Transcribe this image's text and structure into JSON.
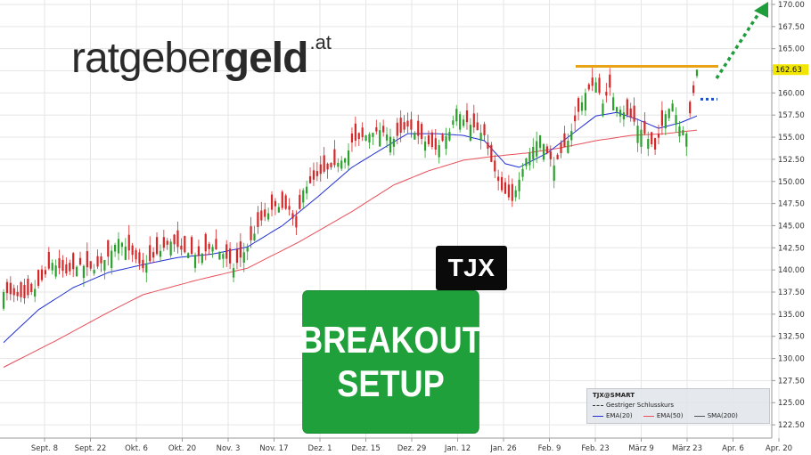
{
  "brand": {
    "name_light": "ratgeber",
    "name_bold": "geld",
    "tld": ".at"
  },
  "badge": {
    "ticker": "TJX"
  },
  "setup": {
    "line1": "BREAKOUT",
    "line2": "SETUP"
  },
  "legend": {
    "title": "TJX@SMART",
    "prev_close": "Gestriger Schlusskurs",
    "ema20": "EMA(20)",
    "ema50": "EMA(50)",
    "sma200": "SMA(200)"
  },
  "colors": {
    "up": "#2ca02c",
    "down": "#d62728",
    "ema20": "#1f2fd6",
    "ema50": "#e8505b",
    "resistance": "#e8a317",
    "target_arrow": "#1f9d3a",
    "prev_close": "#1f4fbf",
    "last_price_tag": "#f2e600",
    "grid": "#e6e6e6"
  },
  "chart_data": {
    "type": "candlestick",
    "ylim": [
      121,
      170.5
    ],
    "y_ticks": [
      "122.50",
      "125.00",
      "127.50",
      "130.00",
      "132.50",
      "135.00",
      "137.50",
      "140.00",
      "142.50",
      "145.00",
      "147.50",
      "150.00",
      "152.50",
      "155.00",
      "157.50",
      "160.00",
      "162.50",
      "165.00",
      "167.50",
      "170.00"
    ],
    "x_ticks": [
      "Sept. 8",
      "Sept. 22",
      "Okt. 6",
      "Okt. 20",
      "Nov. 3",
      "Nov. 17",
      "Dez. 1",
      "Dez. 15",
      "Dez. 29",
      "Jan. 12",
      "Jan. 26",
      "Feb. 9",
      "Feb. 23",
      "März 9",
      "März 23",
      "Apr. 6",
      "Apr. 20"
    ],
    "last_price": "162.63",
    "resistance": 163.0,
    "prev_close": 159.3,
    "close_path": [
      [
        0,
        137.5
      ],
      [
        6,
        136.8
      ],
      [
        10,
        138.2
      ],
      [
        14,
        140.8
      ],
      [
        18,
        139.6
      ],
      [
        22,
        140.6
      ],
      [
        26,
        140.0
      ],
      [
        30,
        141.5
      ],
      [
        33,
        143.5
      ],
      [
        36,
        142.2
      ],
      [
        40,
        140.2
      ],
      [
        44,
        141.8
      ],
      [
        48,
        143.2
      ],
      [
        52,
        142.0
      ],
      [
        56,
        141.6
      ],
      [
        60,
        142.6
      ],
      [
        63,
        141.8
      ],
      [
        66,
        140.2
      ],
      [
        70,
        142.6
      ],
      [
        74,
        145.6
      ],
      [
        78,
        147.2
      ],
      [
        82,
        146.8
      ],
      [
        84,
        144.8
      ],
      [
        86,
        149.0
      ],
      [
        90,
        150.6
      ],
      [
        94,
        151.6
      ],
      [
        98,
        152.6
      ],
      [
        100,
        154.4
      ],
      [
        104,
        155.2
      ],
      [
        108,
        155.8
      ],
      [
        112,
        154.8
      ],
      [
        116,
        156.2
      ],
      [
        120,
        154.8
      ],
      [
        124,
        153.6
      ],
      [
        128,
        155.6
      ],
      [
        130,
        158.2
      ],
      [
        132,
        157.0
      ],
      [
        136,
        155.8
      ],
      [
        138,
        155.2
      ],
      [
        140,
        152.2
      ],
      [
        143,
        149.0
      ],
      [
        146,
        147.8
      ],
      [
        148,
        150.2
      ],
      [
        150,
        152.6
      ],
      [
        154,
        155.2
      ],
      [
        156,
        153.2
      ],
      [
        158,
        151.8
      ],
      [
        162,
        154.6
      ],
      [
        164,
        156.8
      ],
      [
        167,
        160.0
      ],
      [
        170,
        161.2
      ],
      [
        172,
        158.8
      ],
      [
        174,
        160.6
      ],
      [
        176,
        158.4
      ],
      [
        180,
        157.2
      ],
      [
        184,
        155.4
      ],
      [
        187,
        153.6
      ],
      [
        190,
        157.6
      ],
      [
        192,
        158.8
      ],
      [
        194,
        156.2
      ],
      [
        196,
        155.4
      ],
      [
        198,
        160.0
      ],
      [
        199,
        162.63
      ]
    ],
    "ema20_path": [
      [
        0,
        131.8
      ],
      [
        10,
        135.5
      ],
      [
        20,
        138.0
      ],
      [
        30,
        139.7
      ],
      [
        40,
        140.6
      ],
      [
        50,
        141.4
      ],
      [
        60,
        141.8
      ],
      [
        70,
        142.6
      ],
      [
        80,
        145.0
      ],
      [
        90,
        148.2
      ],
      [
        100,
        151.6
      ],
      [
        110,
        154.0
      ],
      [
        116,
        155.4
      ],
      [
        124,
        155.4
      ],
      [
        132,
        155.2
      ],
      [
        138,
        154.6
      ],
      [
        144,
        152.0
      ],
      [
        148,
        151.6
      ],
      [
        156,
        153.2
      ],
      [
        164,
        155.6
      ],
      [
        170,
        157.4
      ],
      [
        176,
        157.8
      ],
      [
        182,
        157.0
      ],
      [
        188,
        156.0
      ],
      [
        194,
        156.6
      ],
      [
        199,
        157.4
      ]
    ],
    "ema50_path": [
      [
        0,
        129.0
      ],
      [
        15,
        132.0
      ],
      [
        30,
        135.2
      ],
      [
        40,
        137.2
      ],
      [
        55,
        138.8
      ],
      [
        70,
        140.2
      ],
      [
        85,
        143.2
      ],
      [
        100,
        146.6
      ],
      [
        112,
        149.6
      ],
      [
        122,
        151.2
      ],
      [
        132,
        152.4
      ],
      [
        140,
        152.8
      ],
      [
        150,
        153.2
      ],
      [
        160,
        153.8
      ],
      [
        170,
        154.6
      ],
      [
        180,
        155.2
      ],
      [
        190,
        155.4
      ],
      [
        199,
        155.8
      ]
    ]
  }
}
